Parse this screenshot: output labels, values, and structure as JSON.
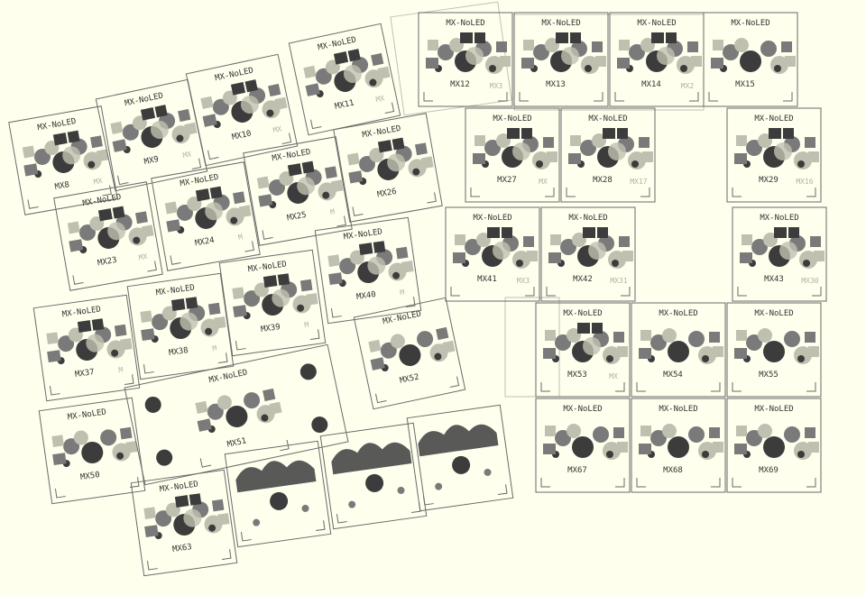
{
  "colors": {
    "background": "#ffffee",
    "outline": "#6a6a6a",
    "ghost_outline": "#c2c2b4",
    "dark_pad": "#3c3c3c",
    "mid_pad": "#7a7a7a",
    "light_pad": "#c0c0b0",
    "ghost_text": "#b2b2a6",
    "text": "#333333"
  },
  "footprint_label": "MX-NoLED",
  "mirrored_label": "MX-NoLED",
  "keys": [
    {
      "id": "MX8",
      "label": "MX8",
      "ghost": "MX"
    },
    {
      "id": "MX9",
      "label": "MX9",
      "ghost": "MX"
    },
    {
      "id": "MX10",
      "label": "MX10",
      "ghost": "MX"
    },
    {
      "id": "MX11",
      "label": "MX11",
      "ghost": "MX"
    },
    {
      "id": "MX12",
      "label": "MX12",
      "ghost": "MX3"
    },
    {
      "id": "MX13",
      "label": "MX13",
      "ghost": ""
    },
    {
      "id": "MX14",
      "label": "MX14",
      "ghost": "MX2"
    },
    {
      "id": "MX15",
      "label": "MX15",
      "ghost": ""
    },
    {
      "id": "MX23",
      "label": "MX23",
      "ghost": "MX"
    },
    {
      "id": "MX24",
      "label": "MX24",
      "ghost": "M"
    },
    {
      "id": "MX25",
      "label": "MX25",
      "ghost": "M"
    },
    {
      "id": "MX26",
      "label": "MX26",
      "ghost": ""
    },
    {
      "id": "MX27",
      "label": "MX27",
      "ghost": "MX"
    },
    {
      "id": "MX28",
      "label": "MX28",
      "ghost": "MX17"
    },
    {
      "id": "MX29",
      "label": "MX29",
      "ghost": "MX16"
    },
    {
      "id": "MX37",
      "label": "MX37",
      "ghost": "M"
    },
    {
      "id": "MX38",
      "label": "MX38",
      "ghost": "M"
    },
    {
      "id": "MX39",
      "label": "MX39",
      "ghost": "M"
    },
    {
      "id": "MX40",
      "label": "MX40",
      "ghost": "M"
    },
    {
      "id": "MX41",
      "label": "MX41",
      "ghost": "MX3"
    },
    {
      "id": "MX42",
      "label": "MX42",
      "ghost": "MX31"
    },
    {
      "id": "MX43",
      "label": "MX43",
      "ghost": "MX30"
    },
    {
      "id": "MX50",
      "label": "MX50",
      "ghost": ""
    },
    {
      "id": "MX51",
      "label": "MX51",
      "ghost": ""
    },
    {
      "id": "MX52",
      "label": "MX52",
      "ghost": ""
    },
    {
      "id": "MX53",
      "label": "MX53",
      "ghost": "MX"
    },
    {
      "id": "MX54",
      "label": "MX54",
      "ghost": ""
    },
    {
      "id": "MX55",
      "label": "MX55",
      "ghost": ""
    },
    {
      "id": "MX63",
      "label": "MX63",
      "ghost": ""
    },
    {
      "id": "MX67",
      "label": "MX67",
      "ghost": ""
    },
    {
      "id": "MX68",
      "label": "MX68",
      "ghost": ""
    },
    {
      "id": "MX69",
      "label": "MX69",
      "ghost": ""
    }
  ]
}
